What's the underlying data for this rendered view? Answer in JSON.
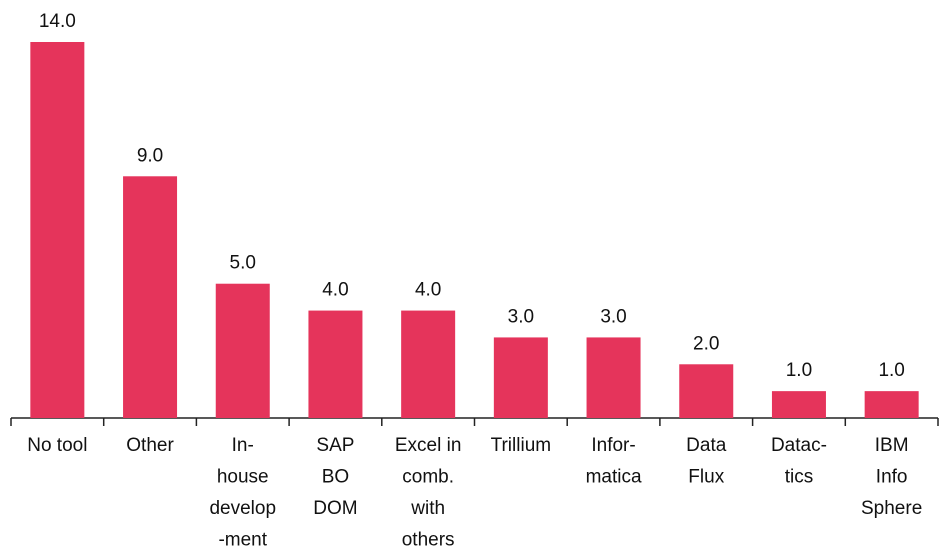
{
  "chart_data": {
    "type": "bar",
    "categories": [
      [
        "No tool"
      ],
      [
        "Other"
      ],
      [
        "In-",
        "house",
        "develop",
        "-ment"
      ],
      [
        "SAP",
        "BO",
        "DOM"
      ],
      [
        "Excel in",
        "comb.",
        "with",
        "others"
      ],
      [
        "Trillium"
      ],
      [
        "Infor-",
        "matica"
      ],
      [
        "Data",
        "Flux"
      ],
      [
        "Datac-",
        "tics"
      ],
      [
        "IBM",
        "Info",
        "Sphere"
      ]
    ],
    "values": [
      14,
      9,
      5,
      4,
      4,
      3,
      3,
      2,
      1,
      1
    ],
    "value_labels": [
      "14.0",
      "9.0",
      "5.0",
      "4.0",
      "4.0",
      "3.0",
      "3.0",
      "2.0",
      "1.0",
      "1.0"
    ],
    "color": "#e5345b",
    "ylim": [
      0,
      14
    ]
  }
}
